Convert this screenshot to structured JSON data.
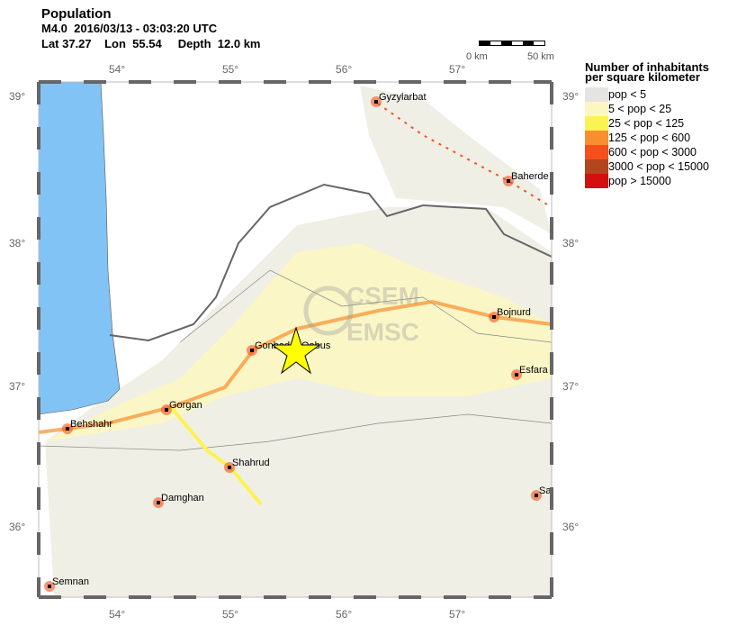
{
  "header": {
    "title": "Population",
    "event": "M4.0  2016/03/13 - 03:03:20 UTC",
    "location": "Lat 37.27    Lon  55.54     Depth  12.0 km"
  },
  "scale_bar": {
    "start_label": "0 km",
    "end_label": "50 km"
  },
  "axes": {
    "lon_ticks": [
      "54°",
      "55°",
      "56°",
      "57°"
    ],
    "lat_ticks": [
      "39°",
      "38°",
      "37°",
      "36°"
    ]
  },
  "legend": {
    "title_line1": "Number of inhabitants",
    "title_line2": "per square kilometer",
    "items": [
      {
        "label": "pop < 5",
        "color": "#e4e4e2"
      },
      {
        "label": "5 < pop < 25",
        "color": "#fbf6c2"
      },
      {
        "label": "25 < pop < 125",
        "color": "#fbf352"
      },
      {
        "label": "125 < pop < 600",
        "color": "#f88e2e"
      },
      {
        "label": "600 < pop < 3000",
        "color": "#f5501c"
      },
      {
        "label": "3000 < pop < 15000",
        "color": "#b5451c"
      },
      {
        "label": "pop > 15000",
        "color": "#d40f10"
      }
    ]
  },
  "map": {
    "sea_color": "#82c3f5",
    "epicenter_color": "#ffff00",
    "watermark": [
      "CSEM",
      "EMSC"
    ],
    "cities": [
      {
        "name": "Gyzylarbat"
      },
      {
        "name": "Baherde"
      },
      {
        "name": "Bojnurd"
      },
      {
        "name": "Esfara"
      },
      {
        "name": "Gonbad-e Qabus"
      },
      {
        "name": "Gorgan"
      },
      {
        "name": "Behshahr"
      },
      {
        "name": "Shahrud"
      },
      {
        "name": "Damghan"
      },
      {
        "name": "Semnan"
      },
      {
        "name": "Sa"
      }
    ]
  }
}
